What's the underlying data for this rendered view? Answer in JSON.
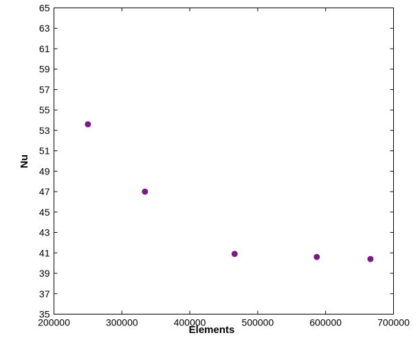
{
  "chart_data": {
    "type": "scatter",
    "title": "",
    "xlabel": "Elements",
    "ylabel": "Nu",
    "xlim": [
      200000,
      700000
    ],
    "ylim": [
      35,
      65
    ],
    "x_ticks": [
      200000,
      300000,
      400000,
      500000,
      600000,
      700000
    ],
    "y_ticks": [
      35,
      37,
      39,
      41,
      43,
      45,
      47,
      49,
      51,
      53,
      55,
      57,
      59,
      61,
      63,
      65
    ],
    "grid": false,
    "legend": "none",
    "series": [
      {
        "color": "#7a1a82",
        "points": [
          {
            "x": 250000,
            "y": 53.6
          },
          {
            "x": 334000,
            "y": 47.0
          },
          {
            "x": 466000,
            "y": 40.9
          },
          {
            "x": 587000,
            "y": 40.6
          },
          {
            "x": 666000,
            "y": 40.4
          }
        ]
      }
    ]
  }
}
